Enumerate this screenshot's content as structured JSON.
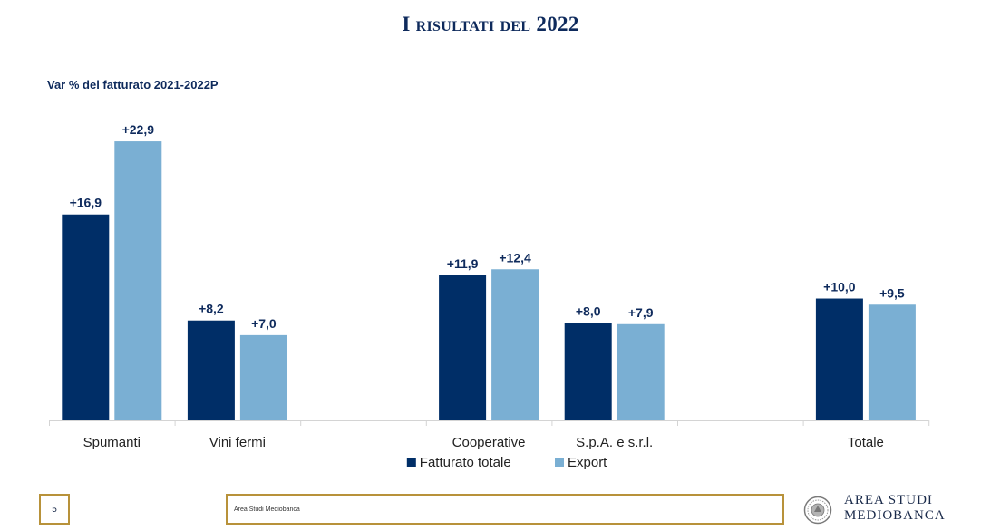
{
  "slide": {
    "title": "I risultati del 2022"
  },
  "footer": {
    "page_number": "5",
    "caption": "Area Studi Mediobanca",
    "brand_line1": "AREA STUDI",
    "brand_line2": "MEDIOBANCA"
  },
  "colors": {
    "fatturato": "#002e67",
    "export": "#7aafd3",
    "gold": "#b8923a",
    "title": "#0e2a5c"
  },
  "chart_data": {
    "type": "bar",
    "title": "",
    "subtitle": "Var % del fatturato 2021-2022P",
    "xlabel": "",
    "ylabel": "",
    "categories": [
      "Spumanti",
      "Vini fermi",
      "",
      "Cooperative",
      "S.p.A. e s.r.l.",
      "",
      "Totale"
    ],
    "series": [
      {
        "name": "Fatturato totale",
        "values": [
          16.9,
          8.2,
          null,
          11.9,
          8.0,
          null,
          10.0
        ],
        "labels": [
          "+16,9",
          "+8,2",
          "",
          "+11,9",
          "+8,0",
          "",
          "+10,0"
        ]
      },
      {
        "name": "Export",
        "values": [
          22.9,
          7.0,
          null,
          12.4,
          7.9,
          null,
          9.5
        ],
        "labels": [
          "+22,9",
          "+7,0",
          "",
          "+12,4",
          "+7,9",
          "",
          "+9,5"
        ]
      }
    ],
    "ylim": [
      0,
      23.5
    ],
    "grid": false,
    "legend": "bottom"
  }
}
